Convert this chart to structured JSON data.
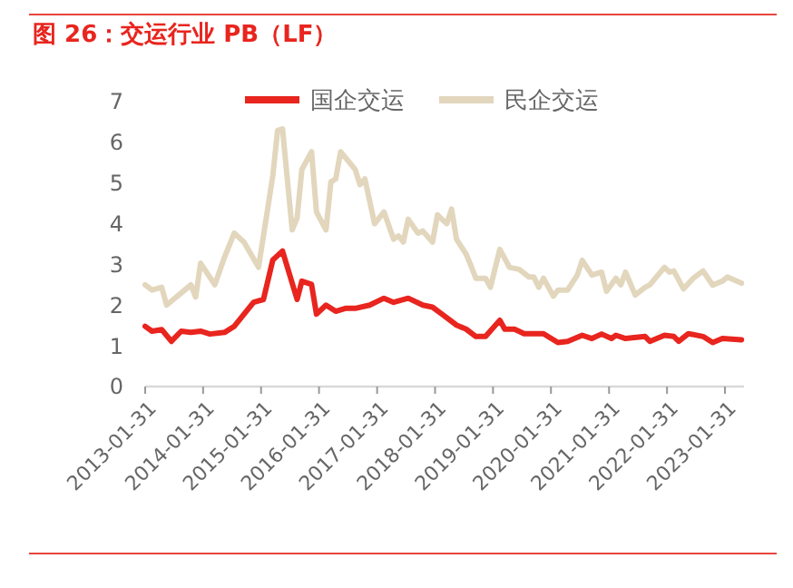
{
  "chart_data": {
    "type": "line",
    "title": "图 26：交运行业 PB（LF）",
    "ylim": [
      0,
      7
    ],
    "yticks": [
      0,
      1,
      2,
      3,
      4,
      5,
      6,
      7
    ],
    "xlim": [
      "2013-01-31",
      "2023-05-31"
    ],
    "xticks": [
      "2013-01-31",
      "2014-01-31",
      "2015-01-31",
      "2016-01-31",
      "2017-01-31",
      "2018-01-31",
      "2019-01-31",
      "2020-01-31",
      "2021-01-31",
      "2022-01-31",
      "2023-01-31"
    ],
    "grid": false,
    "legend": "top",
    "marker": "none",
    "line_style": "solid",
    "series": [
      {
        "name": "国企交运",
        "color": "#e8251e",
        "x": [
          "2013-01-31",
          "2013-03",
          "2013-05",
          "2013-07",
          "2013-09",
          "2013-11",
          "2014-01",
          "2014-03",
          "2014-06",
          "2014-08",
          "2014-09",
          "2014-12",
          "2015-02",
          "2015-04",
          "2015-06",
          "2015-09",
          "2015-10",
          "2015-12",
          "2016-01",
          "2016-03",
          "2016-05",
          "2016-07",
          "2016-09",
          "2016-12",
          "2017-03",
          "2017-05",
          "2017-08",
          "2017-11",
          "2018-01",
          "2018-03",
          "2018-06",
          "2018-08",
          "2018-10",
          "2018-12",
          "2019-03",
          "2019-04",
          "2019-06",
          "2019-08",
          "2019-12",
          "2020-03",
          "2020-05",
          "2020-08",
          "2020-10",
          "2020-12",
          "2021-02",
          "2021-03",
          "2021-05",
          "2021-09",
          "2021-10",
          "2022-01",
          "2022-03",
          "2022-04",
          "2022-06",
          "2022-09",
          "2022-11",
          "2023-01",
          "2023-05"
        ],
        "values": [
          1.48,
          1.36,
          1.4,
          1.11,
          1.36,
          1.33,
          1.36,
          1.29,
          1.33,
          1.48,
          1.63,
          2.07,
          2.14,
          3.11,
          3.33,
          2.14,
          2.59,
          2.51,
          1.78,
          2.0,
          1.85,
          1.92,
          1.92,
          2.0,
          2.17,
          2.07,
          2.17,
          2.0,
          1.95,
          1.78,
          1.51,
          1.41,
          1.23,
          1.23,
          1.63,
          1.41,
          1.41,
          1.3,
          1.3,
          1.08,
          1.11,
          1.26,
          1.18,
          1.29,
          1.18,
          1.26,
          1.18,
          1.23,
          1.11,
          1.26,
          1.23,
          1.11,
          1.3,
          1.23,
          1.08,
          1.18,
          1.15
        ]
      },
      {
        "name": "民企交运",
        "color": "#e2d6bd",
        "x": [
          "2013-01-31",
          "2013-03",
          "2013-05",
          "2013-06",
          "2013-09",
          "2013-11",
          "2013-12",
          "2014-01",
          "2014-04",
          "2014-06",
          "2014-08",
          "2014-10",
          "2015-01",
          "2015-02",
          "2015-04",
          "2015-05",
          "2015-06",
          "2015-08",
          "2015-09",
          "2015-10",
          "2015-12",
          "2016-01",
          "2016-03",
          "2016-04",
          "2016-05",
          "2016-06",
          "2016-09",
          "2016-10",
          "2016-11",
          "2017-01",
          "2017-03",
          "2017-05",
          "2017-06",
          "2017-07",
          "2017-08",
          "2017-10",
          "2017-11",
          "2018-01",
          "2018-02",
          "2018-03",
          "2018-04",
          "2018-05",
          "2018-06",
          "2018-08",
          "2018-09",
          "2018-10",
          "2018-12",
          "2019-01",
          "2019-03",
          "2019-05",
          "2019-07",
          "2019-09",
          "2019-10",
          "2019-11",
          "2019-12",
          "2020-02",
          "2020-03",
          "2020-05",
          "2020-07",
          "2020-08",
          "2020-10",
          "2020-12",
          "2021-01",
          "2021-03",
          "2021-04",
          "2021-05",
          "2021-07",
          "2021-09",
          "2021-10",
          "2022-01",
          "2022-02",
          "2022-03",
          "2022-05",
          "2022-07",
          "2022-09",
          "2022-11",
          "2023-01",
          "2023-02",
          "2023-05"
        ],
        "values": [
          2.5,
          2.37,
          2.44,
          2.0,
          2.3,
          2.5,
          2.2,
          3.03,
          2.5,
          3.18,
          3.77,
          3.55,
          2.93,
          3.7,
          5.18,
          6.29,
          6.33,
          3.85,
          4.14,
          5.33,
          5.77,
          4.29,
          3.85,
          5.03,
          5.1,
          5.77,
          5.33,
          4.96,
          5.1,
          4.0,
          4.29,
          3.62,
          3.7,
          3.55,
          4.11,
          3.77,
          3.82,
          3.55,
          4.22,
          4.11,
          4.0,
          4.36,
          3.62,
          3.25,
          2.96,
          2.66,
          2.66,
          2.44,
          3.37,
          2.93,
          2.88,
          2.69,
          2.69,
          2.44,
          2.66,
          2.22,
          2.37,
          2.37,
          2.74,
          3.1,
          2.74,
          2.81,
          2.34,
          2.66,
          2.5,
          2.81,
          2.25,
          2.44,
          2.5,
          2.93,
          2.81,
          2.84,
          2.4,
          2.66,
          2.84,
          2.49,
          2.59,
          2.69,
          2.54
        ]
      }
    ]
  }
}
